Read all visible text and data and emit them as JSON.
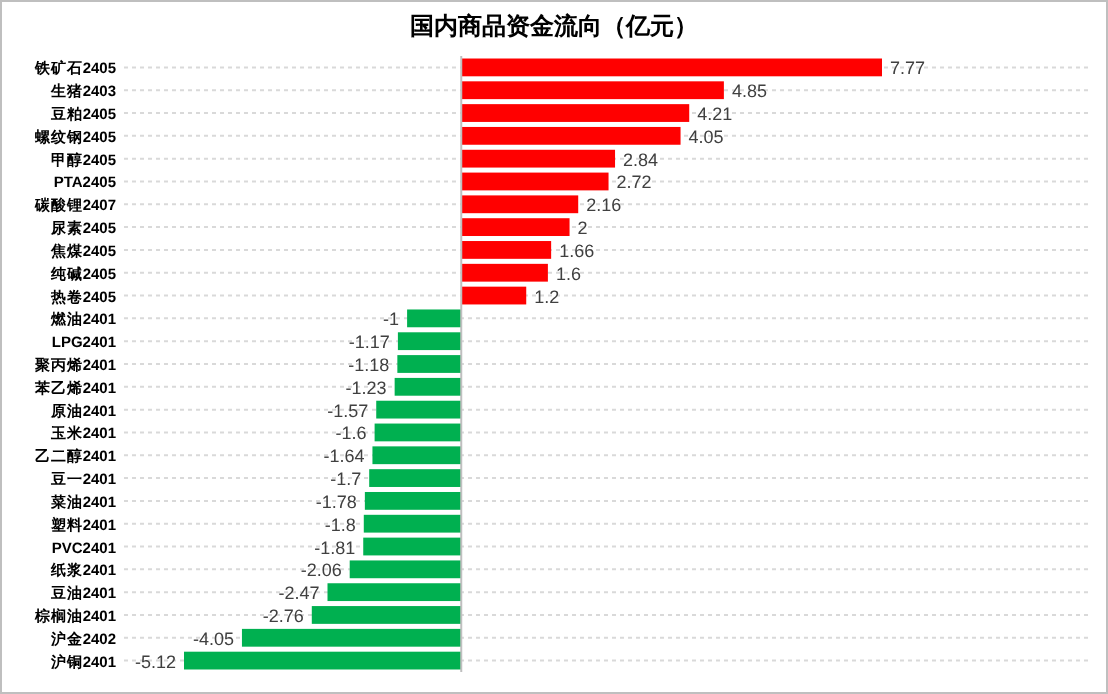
{
  "chart_data": {
    "type": "bar",
    "orientation": "horizontal",
    "title": "国内商品资金流向（亿元）",
    "categories": [
      "铁矿石2405",
      "生猪2403",
      "豆粕2405",
      "螺纹钢2405",
      "甲醇2405",
      "PTA2405",
      "碳酸锂2407",
      "尿素2405",
      "焦煤2405",
      "纯碱2405",
      "热卷2405",
      "燃油2401",
      "LPG2401",
      "聚丙烯2401",
      "苯乙烯2401",
      "原油2401",
      "玉米2401",
      "乙二醇2401",
      "豆一2401",
      "菜油2401",
      "塑料2401",
      "PVC2401",
      "纸浆2401",
      "豆油2401",
      "棕榈油2401",
      "沪金2402",
      "沪铜2401"
    ],
    "values": [
      7.77,
      4.85,
      4.21,
      4.05,
      2.84,
      2.72,
      2.16,
      2,
      1.66,
      1.6,
      1.2,
      -1,
      -1.17,
      -1.18,
      -1.23,
      -1.57,
      -1.6,
      -1.64,
      -1.7,
      -1.78,
      -1.8,
      -1.81,
      -2.06,
      -2.47,
      -2.76,
      -4.05,
      -5.12
    ],
    "colors": [
      "#ff0000",
      "#ff0000",
      "#ff0000",
      "#ff0000",
      "#ff0000",
      "#ff0000",
      "#ff0000",
      "#ff0000",
      "#ff0000",
      "#ff0000",
      "#ff0000",
      "#00b050",
      "#00b050",
      "#00b050",
      "#00b050",
      "#00b050",
      "#00b050",
      "#00b050",
      "#00b050",
      "#00b050",
      "#00b050",
      "#00b050",
      "#00b050",
      "#00b050",
      "#00b050",
      "#00b050",
      "#00b050"
    ],
    "data_labels": true
  }
}
